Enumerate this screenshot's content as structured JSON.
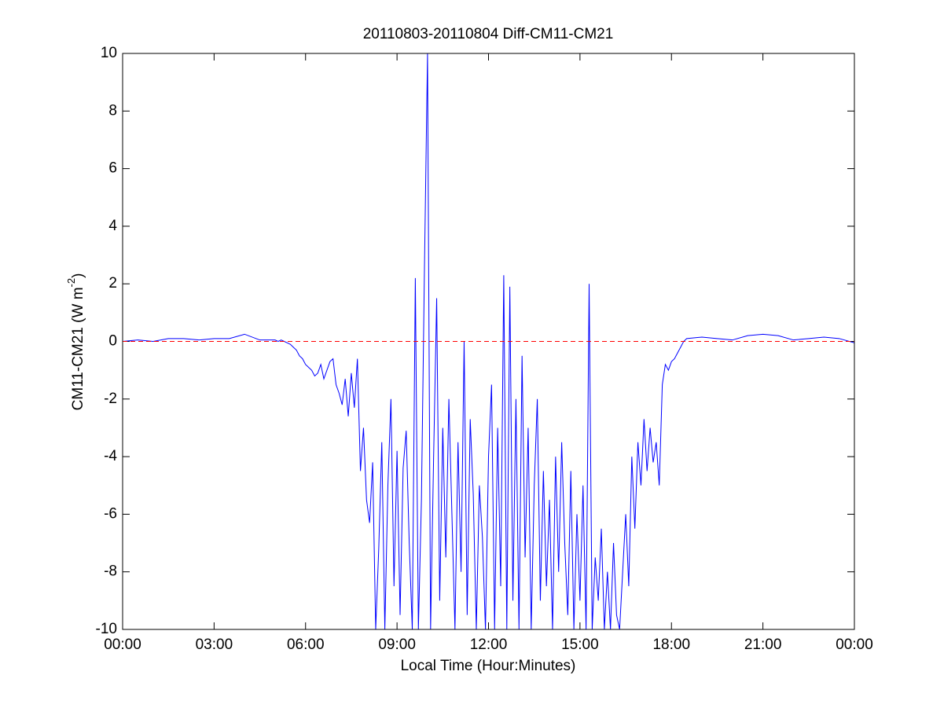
{
  "chart_data": {
    "type": "line",
    "title": "20110803-20110804 Diff-CM11-CM21",
    "xlabel": "Local Time (Hour:Minutes)",
    "ylabel": {
      "text": "CM11-CM21 (W m",
      "superscript": "-2",
      "suffix": ")"
    },
    "xlim": [
      0,
      24
    ],
    "xticks": [
      {
        "value": 0,
        "label": "00:00"
      },
      {
        "value": 3,
        "label": "03:00"
      },
      {
        "value": 6,
        "label": "06:00"
      },
      {
        "value": 9,
        "label": "09:00"
      },
      {
        "value": 12,
        "label": "12:00"
      },
      {
        "value": 15,
        "label": "15:00"
      },
      {
        "value": 18,
        "label": "18:00"
      },
      {
        "value": 21,
        "label": "21:00"
      },
      {
        "value": 24,
        "label": "00:00"
      }
    ],
    "ylim": [
      -10,
      10
    ],
    "yticks": [
      -10,
      -8,
      -6,
      -4,
      -2,
      0,
      2,
      4,
      6,
      8,
      10
    ],
    "reference_lines": [
      {
        "value": 0,
        "color": "#ff0000",
        "style": "dashed"
      }
    ],
    "x": [
      0,
      0.5,
      1,
      1.5,
      2,
      2.5,
      3,
      3.5,
      4,
      4.5,
      5.0,
      5.1,
      5.2,
      5.3,
      5.4,
      5.5,
      5.6,
      5.7,
      5.8,
      5.9,
      6.0,
      6.1,
      6.2,
      6.3,
      6.4,
      6.5,
      6.6,
      6.7,
      6.8,
      6.9,
      7.0,
      7.1,
      7.2,
      7.3,
      7.4,
      7.5,
      7.6,
      7.7,
      7.8,
      7.9,
      8.0,
      8.1,
      8.2,
      8.3,
      8.4,
      8.5,
      8.6,
      8.7,
      8.8,
      8.9,
      9.0,
      9.1,
      9.2,
      9.3,
      9.4,
      9.5,
      9.6,
      9.7,
      9.8,
      9.9,
      10.0,
      10.1,
      10.2,
      10.3,
      10.4,
      10.5,
      10.6,
      10.7,
      10.8,
      10.9,
      11.0,
      11.1,
      11.2,
      11.3,
      11.4,
      11.5,
      11.6,
      11.7,
      11.8,
      11.9,
      12.0,
      12.1,
      12.2,
      12.3,
      12.4,
      12.5,
      12.6,
      12.7,
      12.8,
      12.9,
      13.0,
      13.1,
      13.2,
      13.3,
      13.4,
      13.5,
      13.6,
      13.7,
      13.8,
      13.9,
      14.0,
      14.1,
      14.2,
      14.3,
      14.4,
      14.5,
      14.6,
      14.7,
      14.8,
      14.9,
      15.0,
      15.1,
      15.2,
      15.3,
      15.4,
      15.5,
      15.6,
      15.7,
      15.8,
      15.9,
      16.0,
      16.1,
      16.2,
      16.3,
      16.4,
      16.5,
      16.6,
      16.7,
      16.8,
      16.9,
      17.0,
      17.1,
      17.2,
      17.3,
      17.4,
      17.5,
      17.6,
      17.7,
      17.8,
      17.9,
      18.0,
      18.1,
      18.2,
      18.3,
      18.4,
      18.5,
      19,
      19.5,
      20,
      20.5,
      21,
      21.5,
      22,
      22.5,
      23,
      23.5,
      24
    ],
    "series": [
      {
        "color": "#0000ff",
        "values": [
          0,
          0.05,
          0,
          0.1,
          0.1,
          0.05,
          0.1,
          0.1,
          0.25,
          0.05,
          0.05,
          0,
          0.05,
          0,
          -0.05,
          -0.1,
          -0.2,
          -0.3,
          -0.5,
          -0.6,
          -0.8,
          -0.9,
          -1,
          -1.2,
          -1.1,
          -0.8,
          -1.3,
          -1,
          -0.7,
          -0.6,
          -1.5,
          -1.8,
          -2.2,
          -1.3,
          -2.6,
          -1.1,
          -2.3,
          -0.6,
          -4.5,
          -3,
          -5.5,
          -6.3,
          -4.2,
          -10,
          -7.2,
          -3.5,
          -10,
          -5,
          -2,
          -8.5,
          -3.8,
          -9.5,
          -4.4,
          -3.1,
          -7,
          -10,
          2.2,
          -10,
          -5.5,
          2.6,
          10,
          -10,
          -4,
          1.5,
          -9,
          -3,
          -7.5,
          -2,
          -6,
          -10,
          -3.5,
          -8,
          0,
          -9.5,
          -2.7,
          -5.3,
          -10,
          -5,
          -6.8,
          -10,
          -4,
          -1.5,
          -10,
          -3,
          -8.5,
          2.3,
          -10,
          1.9,
          -9,
          -2,
          -10,
          -0.5,
          -7.5,
          -3,
          -10,
          -5,
          -2,
          -9,
          -4.5,
          -8.5,
          -5.5,
          -10,
          -4,
          -8,
          -3.5,
          -7,
          -9.5,
          -4.5,
          -10,
          -6,
          -9,
          -5,
          -10,
          2,
          -10,
          -7.5,
          -9,
          -6.5,
          -10,
          -8,
          -10,
          -7,
          -9.5,
          -10,
          -8,
          -6,
          -8.5,
          -4,
          -6.5,
          -3.5,
          -5,
          -2.7,
          -4.5,
          -3,
          -4.2,
          -3.5,
          -5,
          -1.5,
          -0.8,
          -1,
          -0.7,
          -0.6,
          -0.4,
          -0.2,
          0,
          0.1,
          0.15,
          0.1,
          0.05,
          0.2,
          0.25,
          0.2,
          0.05,
          0.1,
          0.15,
          0.1,
          -0.05
        ]
      }
    ]
  }
}
